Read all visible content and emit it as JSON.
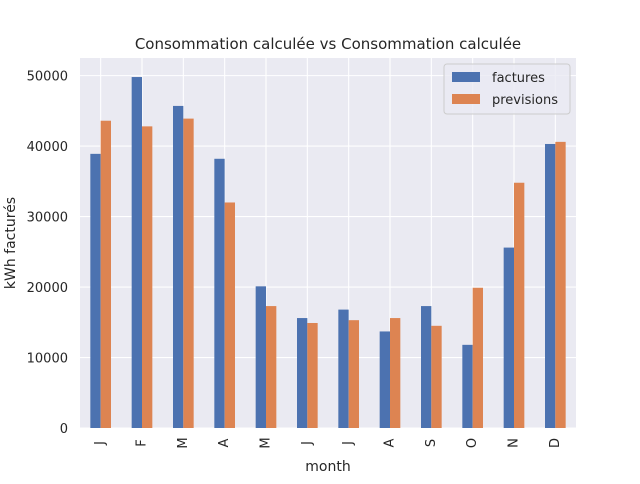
{
  "chart_data": {
    "type": "bar",
    "title": "Consommation calculée vs Consommation calculée",
    "xlabel": "month",
    "ylabel": "kWh facturés",
    "categories": [
      "J",
      "F",
      "M",
      "A",
      "M",
      "J",
      "J",
      "A",
      "S",
      "O",
      "N",
      "D"
    ],
    "series": [
      {
        "name": "factures",
        "color": "#4c72b0",
        "values": [
          38900,
          49800,
          45700,
          38200,
          20100,
          15600,
          16800,
          13700,
          17300,
          11800,
          25600,
          40300
        ]
      },
      {
        "name": "previsions",
        "color": "#dd8452",
        "values": [
          43600,
          42800,
          43900,
          32000,
          17300,
          14900,
          15300,
          15600,
          14500,
          19900,
          34800,
          40600
        ]
      }
    ],
    "ylim": [
      0,
      52500
    ],
    "yticks": [
      0,
      10000,
      20000,
      30000,
      40000,
      50000
    ],
    "grid": true,
    "legend_position": "top-right",
    "plot_background": "#eaeaf2",
    "grid_color": "#ffffff"
  }
}
